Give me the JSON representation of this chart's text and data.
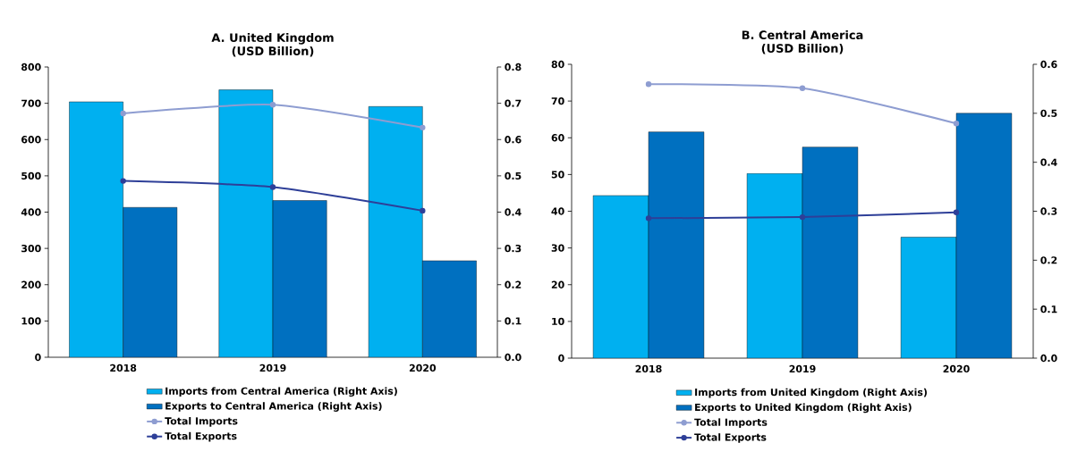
{
  "chart_data": [
    {
      "type": "bar",
      "title": "A. United Kingdom",
      "subtitle": "(USD Billion)",
      "categories": [
        "2018",
        "2019",
        "2020"
      ],
      "series": [
        {
          "name": "Imports from Central America (Right Axis)",
          "axis": "y2",
          "color": "#00b0f0",
          "values": [
            0.704,
            0.737,
            0.691
          ]
        },
        {
          "name": "Exports to Central America (Right Axis)",
          "axis": "y2",
          "color": "#0070c0",
          "values": [
            0.413,
            0.432,
            0.266
          ]
        },
        {
          "name": "Total Imports",
          "type": "line",
          "color": "#8e9dd1",
          "values": [
            672,
            696,
            633
          ]
        },
        {
          "name": "Total Exports",
          "type": "line",
          "color": "#2e3f98",
          "values": [
            486,
            469,
            404
          ]
        }
      ],
      "ylim": [
        0,
        800
      ],
      "yticks": [
        0,
        100,
        200,
        300,
        400,
        500,
        600,
        700,
        800
      ],
      "y2lim": [
        0,
        0.8
      ],
      "y2ticks": [
        {
          "value": 0,
          "label": "0.0"
        },
        0.1,
        0.2,
        0.3,
        0.4,
        0.5,
        0.6,
        0.7,
        0.8
      ],
      "legend": "bottom",
      "marker": "circle",
      "line_style": "solid",
      "grid": false
    },
    {
      "type": "bar",
      "title": "B.  Central America",
      "subtitle": "(USD Billion)",
      "categories": [
        "2018",
        "2019",
        "2020"
      ],
      "series": [
        {
          "name": "Imports from United Kingdom (Right Axis)",
          "axis": "y2",
          "color": "#00b0f0",
          "values": [
            0.332,
            0.377,
            0.247
          ]
        },
        {
          "name": "Exports to United Kingdom (Right Axis)",
          "axis": "y2",
          "color": "#0070c0",
          "values": [
            0.462,
            0.431,
            0.5
          ]
        },
        {
          "name": "Total Imports",
          "type": "line",
          "color": "#8e9dd1",
          "values": [
            74.6,
            73.5,
            63.9
          ]
        },
        {
          "name": "Total Exports",
          "type": "line",
          "color": "#2e3f98",
          "values": [
            38.1,
            38.4,
            39.7
          ]
        }
      ],
      "ylim": [
        0,
        80
      ],
      "yticks": [
        0,
        10,
        20,
        30,
        40,
        50,
        60,
        70,
        80
      ],
      "y2lim": [
        0,
        0.6
      ],
      "y2ticks": [
        {
          "value": 0,
          "label": "0.0"
        },
        0.1,
        0.2,
        0.3,
        0.4,
        0.5,
        0.6
      ],
      "legend": "bottom",
      "marker": "circle",
      "line_style": "solid",
      "grid": false
    }
  ]
}
